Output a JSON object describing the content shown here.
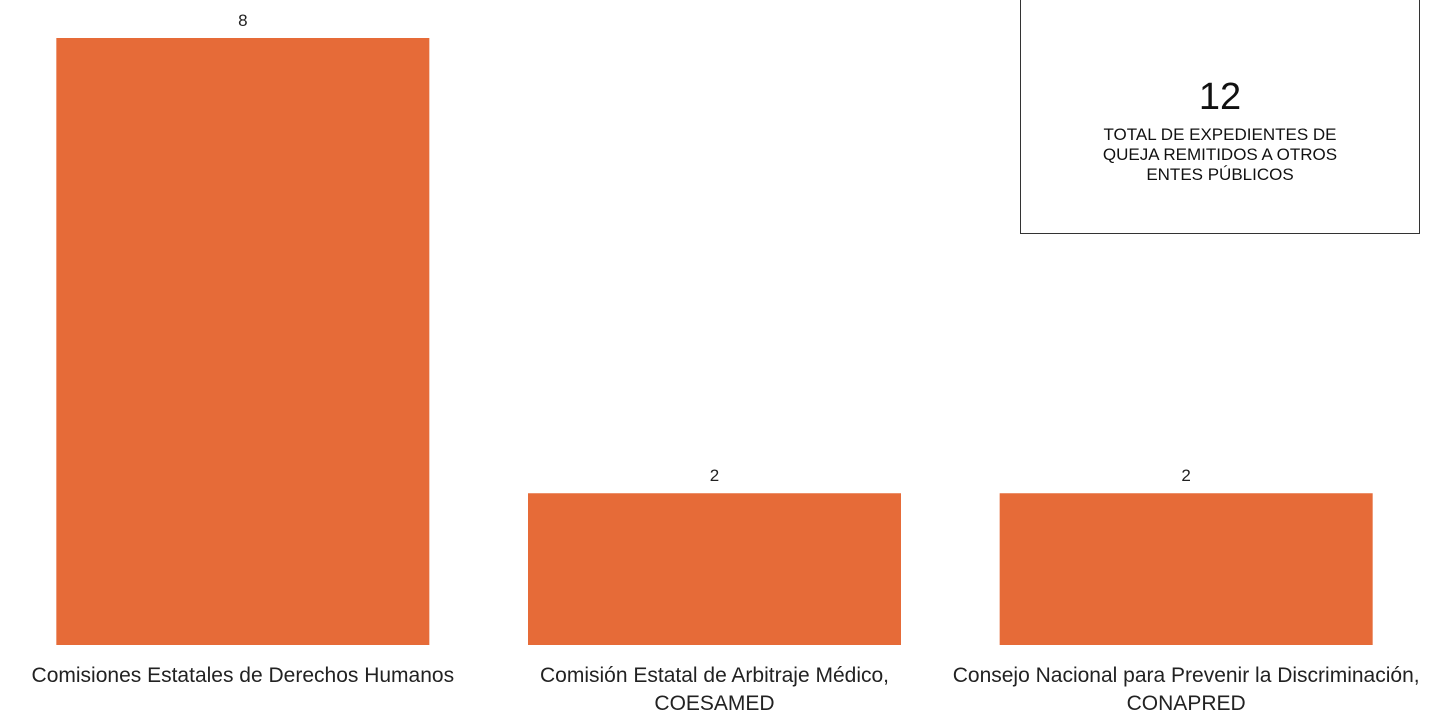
{
  "chart_data": {
    "type": "bar",
    "categories": [
      "Comisiones Estatales de Derechos Humanos",
      "Comisión Estatal de Arbitraje Médico, COESAMED",
      "Consejo Nacional para Prevenir la Discriminación, CONAPRED"
    ],
    "values": [
      8,
      2,
      2
    ],
    "color": "#e66b38",
    "ylim": [
      0,
      8
    ],
    "total": 12,
    "total_label": "TOTAL DE EXPEDIENTES DE QUEJA REMITIDOS A OTROS ENTES PÚBLICOS"
  }
}
